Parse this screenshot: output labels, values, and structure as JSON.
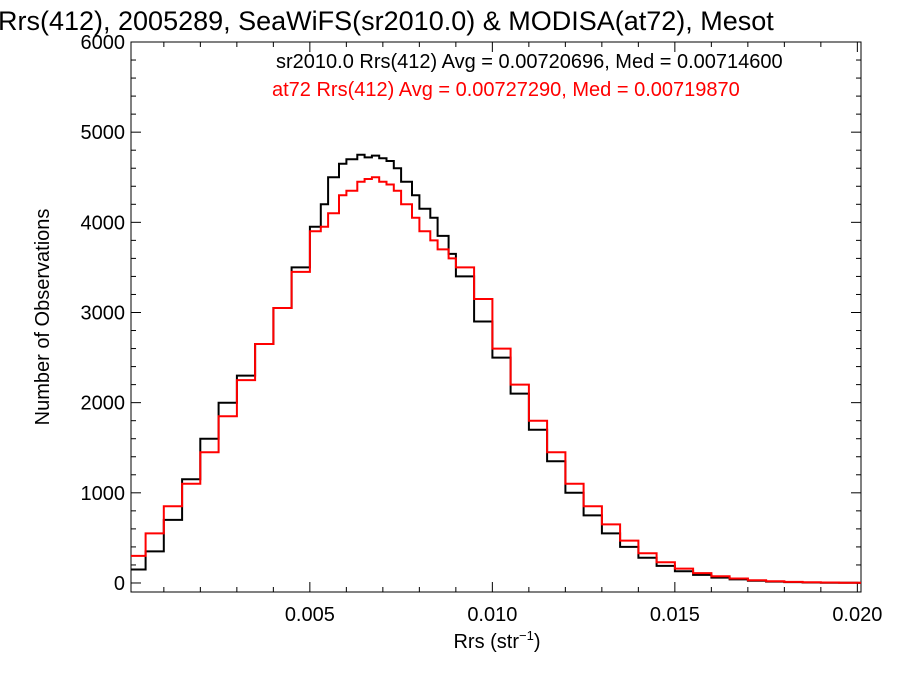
{
  "chart_data": {
    "type": "line",
    "step": true,
    "title": "Rrs(412), 2005289, SeaWiFS(sr2010.0) & MODISA(at72), Mesot",
    "xlabel_main": "Rrs (str",
    "xlabel_sup": "−1",
    "xlabel_tail": ")",
    "ylabel": "Number of Observations",
    "xlim": [
      0.0001,
      0.0201
    ],
    "ylim": [
      -100,
      6000
    ],
    "xticks": [
      0.005,
      0.01,
      0.015,
      0.02
    ],
    "xtick_labels": [
      "0.005",
      "0.010",
      "0.015",
      "0.020"
    ],
    "yticks": [
      0,
      1000,
      2000,
      3000,
      4000,
      5000,
      6000
    ],
    "ytick_labels": [
      "0",
      "1000",
      "2000",
      "3000",
      "4000",
      "5000",
      "6000"
    ],
    "annotations": [
      {
        "text": "sr2010.0 Rrs(412) Avg = 0.00720696, Med = 0.00714600",
        "color": "#000000"
      },
      {
        "text": "at72 Rrs(412) Avg = 0.00727290, Med = 0.00719870",
        "color": "#ff0000"
      }
    ],
    "series": [
      {
        "color": "#000000",
        "x": [
          0.0001,
          0.0005,
          0.001,
          0.0015,
          0.002,
          0.0025,
          0.003,
          0.0035,
          0.004,
          0.0045,
          0.005,
          0.0053,
          0.0055,
          0.0058,
          0.006,
          0.0063,
          0.0065,
          0.0067,
          0.0069,
          0.0071,
          0.0073,
          0.0075,
          0.0078,
          0.008,
          0.0083,
          0.0085,
          0.0088,
          0.009,
          0.0095,
          0.01,
          0.0105,
          0.011,
          0.0115,
          0.012,
          0.0125,
          0.013,
          0.0135,
          0.014,
          0.0145,
          0.015,
          0.0155,
          0.016,
          0.0165,
          0.017,
          0.0175,
          0.018,
          0.0185,
          0.019,
          0.0195,
          0.02
        ],
        "y": [
          150,
          350,
          700,
          1150,
          1600,
          2000,
          2300,
          2650,
          3050,
          3500,
          3950,
          4200,
          4500,
          4650,
          4700,
          4750,
          4720,
          4740,
          4710,
          4680,
          4600,
          4450,
          4300,
          4150,
          4050,
          3850,
          3650,
          3400,
          2900,
          2500,
          2100,
          1700,
          1350,
          1000,
          750,
          550,
          400,
          280,
          190,
          130,
          90,
          60,
          40,
          25,
          15,
          10,
          5,
          3,
          2,
          1
        ]
      },
      {
        "color": "#ff0000",
        "x": [
          0.0001,
          0.0005,
          0.001,
          0.0015,
          0.002,
          0.0025,
          0.003,
          0.0035,
          0.004,
          0.0045,
          0.005,
          0.0053,
          0.0055,
          0.0058,
          0.006,
          0.0063,
          0.0065,
          0.0067,
          0.0069,
          0.0071,
          0.0073,
          0.0075,
          0.0078,
          0.008,
          0.0083,
          0.0085,
          0.0088,
          0.009,
          0.0095,
          0.01,
          0.0105,
          0.011,
          0.0115,
          0.012,
          0.0125,
          0.013,
          0.0135,
          0.014,
          0.0145,
          0.015,
          0.0155,
          0.016,
          0.0165,
          0.017,
          0.0175,
          0.018,
          0.0185,
          0.019,
          0.0195,
          0.02
        ],
        "y": [
          300,
          550,
          850,
          1100,
          1450,
          1850,
          2250,
          2650,
          3050,
          3450,
          3900,
          3950,
          4100,
          4300,
          4350,
          4450,
          4480,
          4500,
          4450,
          4420,
          4350,
          4200,
          4050,
          3900,
          3800,
          3700,
          3600,
          3500,
          3150,
          2600,
          2200,
          1800,
          1450,
          1100,
          850,
          650,
          470,
          330,
          230,
          160,
          110,
          75,
          50,
          30,
          20,
          12,
          8,
          5,
          3,
          2
        ]
      }
    ]
  }
}
